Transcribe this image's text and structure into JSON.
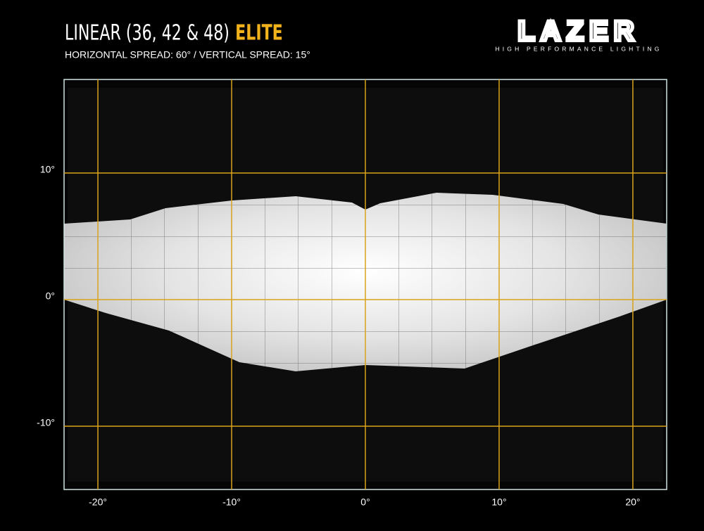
{
  "chart_data": {
    "type": "beam-pattern",
    "title": "LINEAR (36, 42 & 48)",
    "title_highlight": "ELITE",
    "subtitle": "HORIZONTAL SPREAD: 60° / VERTICAL SPREAD: 15°",
    "brand": {
      "name": "LAZER",
      "tagline": "HIGH PERFORMANCE LIGHTING"
    },
    "xlim": [
      -22.53,
      22.53
    ],
    "ylim": [
      -15,
      17.39
    ],
    "xticks": [
      {
        "value": -20,
        "label": "-20°"
      },
      {
        "value": -10,
        "label": "-10°"
      },
      {
        "value": 0,
        "label": "0°"
      },
      {
        "value": 10,
        "label": "10°"
      },
      {
        "value": 20,
        "label": "20°"
      }
    ],
    "yticks": [
      {
        "value": -10,
        "label": "-10°"
      },
      {
        "value": 0,
        "label": "0°"
      },
      {
        "value": 10,
        "label": "10°"
      }
    ],
    "grid": true,
    "grid_color": "#d9a21b"
  }
}
